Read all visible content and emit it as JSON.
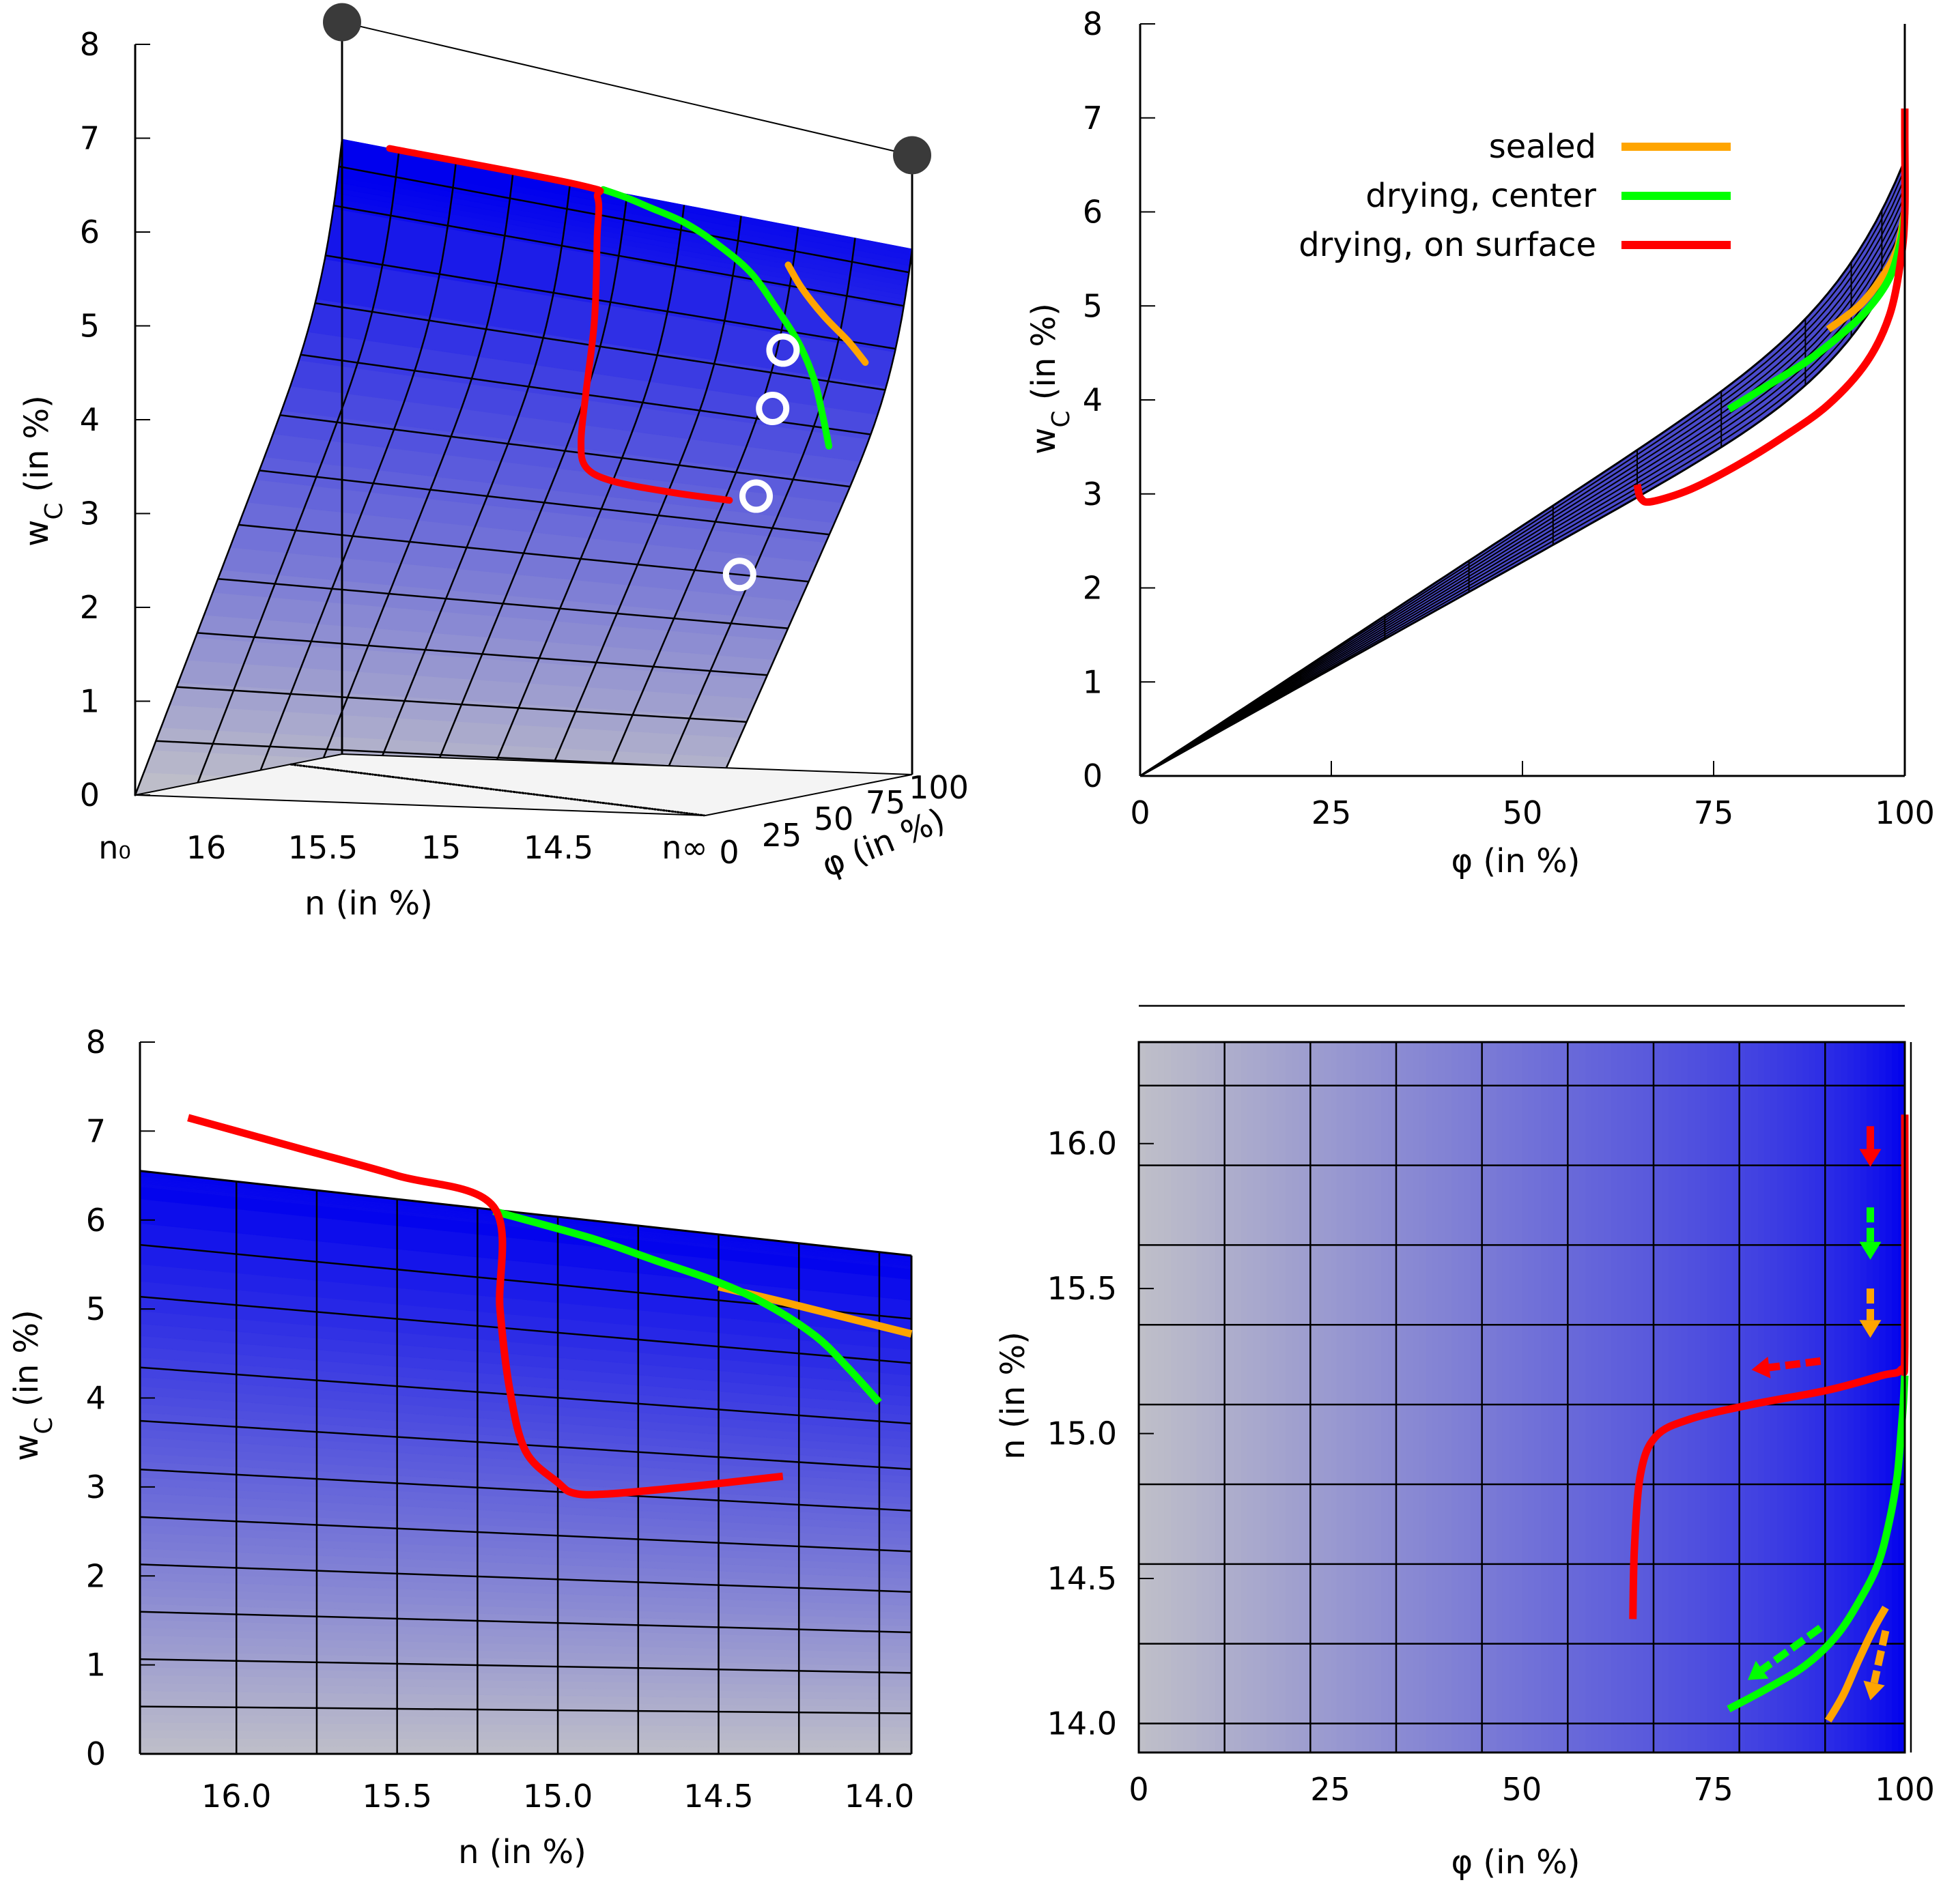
{
  "colors": {
    "sealed": "#ffa500",
    "drying_center": "#00ff00",
    "drying_surface": "#ff0000",
    "surface_top": "#0000ee",
    "surface_bottom": "#c0c0c0",
    "grid": "#000000",
    "marker_dark": "#3a3a3a",
    "marker_ring": "#ffffff"
  },
  "chart_data": [
    {
      "id": "surface3d",
      "type": "surface",
      "title": "",
      "zlabel": "w_C (in %)",
      "xlabel": "n (in %)",
      "ylabel": "φ (in %)",
      "z_ticks": [
        "0",
        "1",
        "2",
        "3",
        "4",
        "5",
        "6",
        "7",
        "8"
      ],
      "n_ticks": [
        "n₀",
        "16",
        "15.5",
        "15",
        "14.5",
        "n∞"
      ],
      "phi_ticks": [
        "0",
        "25",
        "50",
        "75",
        "100"
      ],
      "zlim": [
        0,
        8
      ],
      "endpoints": [
        {
          "label": "n0 at φ=100",
          "n": 16.3,
          "phi": 100,
          "w": 7.8
        },
        {
          "label": "n∞ at φ=100",
          "n": 13.9,
          "phi": 100,
          "w": 6.6
        }
      ],
      "measurement_points": [
        {
          "phi": 95,
          "w": 4.5
        },
        {
          "phi": 90,
          "w": 3.9
        },
        {
          "phi": 82,
          "w": 3.0
        },
        {
          "phi": 74,
          "w": 2.2
        }
      ],
      "legend": []
    },
    {
      "id": "wc_vs_phi",
      "type": "line",
      "title": "",
      "xlabel": "φ (in %)",
      "ylabel": "w_C (in %)",
      "x_ticks": [
        "0",
        "25",
        "50",
        "75",
        "100"
      ],
      "y_ticks": [
        "0",
        "1",
        "2",
        "3",
        "4",
        "5",
        "6",
        "7",
        "8"
      ],
      "xlim": [
        0,
        100
      ],
      "ylim": [
        0,
        8
      ],
      "legend": [
        "sealed",
        "drying, center",
        "drying, on surface"
      ],
      "legend_position": "top-right",
      "series": [
        {
          "name": "sealed",
          "x": [
            90,
            94,
            97,
            99,
            100
          ],
          "y": [
            4.75,
            5.0,
            5.3,
            5.6,
            6.0
          ]
        },
        {
          "name": "drying, center",
          "x": [
            77,
            82,
            87,
            91,
            95,
            98,
            99.5,
            100
          ],
          "y": [
            3.9,
            4.15,
            4.4,
            4.65,
            4.95,
            5.3,
            5.7,
            6.0
          ]
        },
        {
          "name": "drying, on surface",
          "x": [
            65,
            65.5,
            67,
            72,
            78,
            84,
            90,
            95,
            98,
            99.5,
            100,
            100,
            100
          ],
          "y": [
            3.1,
            2.95,
            2.92,
            3.05,
            3.3,
            3.6,
            3.95,
            4.4,
            4.9,
            5.5,
            6.0,
            6.8,
            7.1
          ]
        }
      ]
    },
    {
      "id": "wc_vs_n",
      "type": "line",
      "title": "",
      "xlabel": "n (in %)",
      "ylabel": "w_C (in %)",
      "x_ticks": [
        "16.0",
        "15.5",
        "15.0",
        "14.5",
        "14.0"
      ],
      "y_ticks": [
        "0",
        "1",
        "2",
        "3",
        "4",
        "5",
        "6",
        "7",
        "8"
      ],
      "xlim": [
        16.3,
        13.9
      ],
      "ylim": [
        0,
        8
      ],
      "legend": [],
      "series": [
        {
          "name": "sealed",
          "x": [
            14.5,
            14.3,
            14.1,
            13.9
          ],
          "y": [
            5.25,
            5.08,
            4.9,
            4.72
          ]
        },
        {
          "name": "drying, center",
          "x": [
            15.2,
            14.9,
            14.7,
            14.5,
            14.35,
            14.2,
            14.1,
            14.0
          ],
          "y": [
            6.1,
            5.8,
            5.55,
            5.3,
            5.05,
            4.7,
            4.35,
            3.95
          ]
        },
        {
          "name": "drying, on surface",
          "x": [
            16.15,
            15.8,
            15.5,
            15.2,
            15.18,
            15.15,
            15.1,
            15.0,
            14.95,
            14.85,
            14.6,
            14.3
          ],
          "y": [
            7.15,
            6.8,
            6.5,
            6.15,
            5.0,
            4.1,
            3.4,
            3.05,
            2.93,
            2.92,
            3.0,
            3.12
          ]
        }
      ],
      "grid_lines": {
        "n_values": [
          16.0,
          15.75,
          15.5,
          15.25,
          15.0,
          14.75,
          14.5,
          14.25,
          14.0
        ],
        "phi_values": [
          10,
          20,
          30,
          40,
          50,
          60,
          70,
          80,
          90,
          95
        ]
      }
    },
    {
      "id": "n_vs_phi",
      "type": "line",
      "title": "",
      "xlabel": "φ (in %)",
      "ylabel": "n (in %)",
      "x_ticks": [
        "0",
        "25",
        "50",
        "75",
        "100"
      ],
      "y_ticks": [
        "14.0",
        "14.5",
        "15.0",
        "15.5",
        "16.0"
      ],
      "xlim": [
        0,
        100
      ],
      "ylim": [
        13.9,
        16.35
      ],
      "legend": [],
      "series": [
        {
          "name": "sealed",
          "x": [
            90,
            92,
            94,
            96,
            97.5
          ],
          "y": [
            14.01,
            14.1,
            14.22,
            14.33,
            14.4
          ]
        },
        {
          "name": "drying, center",
          "x": [
            77,
            82,
            87,
            91,
            94,
            96.5,
            98,
            99,
            99.5,
            99.8,
            100
          ],
          "y": [
            14.05,
            14.12,
            14.2,
            14.3,
            14.42,
            14.55,
            14.7,
            14.85,
            15.0,
            15.1,
            15.2
          ]
        },
        {
          "name": "drying, on surface",
          "x": [
            64.5,
            64.7,
            65.5,
            67.5,
            72,
            80,
            90,
            97,
            99.5,
            100,
            100
          ],
          "y": [
            14.36,
            14.6,
            14.86,
            14.99,
            15.05,
            15.1,
            15.15,
            15.2,
            15.22,
            15.3,
            16.1
          ]
        }
      ],
      "arrows": [
        {
          "name": "drying, on surface",
          "from": [
            95.5,
            16.06
          ],
          "to": [
            95.5,
            15.92
          ]
        },
        {
          "name": "drying, center",
          "from": [
            95.5,
            15.78
          ],
          "to": [
            95.5,
            15.6
          ]
        },
        {
          "name": "sealed",
          "from": [
            95.5,
            15.5
          ],
          "to": [
            95.5,
            15.33
          ]
        },
        {
          "name": "drying, on surface",
          "from": [
            89,
            15.25
          ],
          "to": [
            80,
            15.22
          ]
        },
        {
          "name": "drying, center",
          "from": [
            89,
            14.33
          ],
          "to": [
            79.5,
            14.15
          ]
        },
        {
          "name": "sealed",
          "from": [
            97.5,
            14.32
          ],
          "to": [
            95.5,
            14.08
          ]
        }
      ]
    }
  ]
}
